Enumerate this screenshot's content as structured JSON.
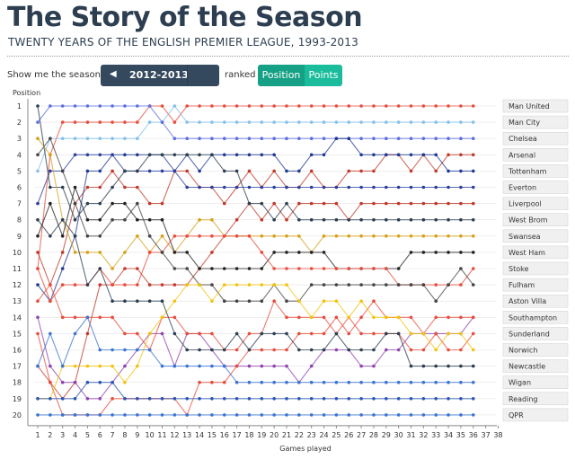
{
  "header": {
    "title": "The Story of the Season",
    "subtitle": "TWENTY YEARS OF THE ENGLISH PREMIER LEAGUE, 1993-2013"
  },
  "controls": {
    "season_label": "Show me the season of",
    "season_value": "2012-2013",
    "ranked_label": "ranked by",
    "toggle_position": "Position",
    "toggle_points": "Points",
    "active_toggle": "Position"
  },
  "chart_data": {
    "type": "line",
    "title": "",
    "ylabel": "Position",
    "xlabel": "Games played",
    "x_ticks": [
      1,
      2,
      3,
      4,
      5,
      6,
      7,
      8,
      9,
      10,
      11,
      12,
      13,
      14,
      15,
      16,
      17,
      18,
      19,
      20,
      21,
      22,
      23,
      24,
      25,
      26,
      27,
      28,
      29,
      30,
      31,
      32,
      33,
      34,
      35,
      36,
      37,
      38
    ],
    "y_ticks": [
      1,
      2,
      3,
      4,
      5,
      6,
      7,
      8,
      9,
      10,
      11,
      12,
      13,
      14,
      15,
      16,
      17,
      18,
      19,
      20
    ],
    "xlim": [
      1,
      38
    ],
    "ylim": [
      1,
      20
    ],
    "y_inverted": true,
    "grid": true,
    "legend_placement": "right",
    "series": [
      {
        "name": "Man United",
        "color": "#e74c3c",
        "values": [
          11,
          4,
          2,
          2,
          2,
          2,
          2,
          2,
          2,
          1,
          1,
          2,
          1,
          1,
          1,
          1,
          1,
          1,
          1,
          1,
          1,
          1,
          1,
          1,
          1,
          1,
          1,
          1,
          1,
          1,
          1,
          1,
          1,
          1,
          1,
          1
        ]
      },
      {
        "name": "Man City",
        "color": "#85c1e9",
        "values": [
          5,
          3,
          3,
          3,
          3,
          3,
          3,
          3,
          3,
          2,
          2,
          1,
          2,
          2,
          2,
          2,
          2,
          2,
          2,
          2,
          2,
          2,
          2,
          2,
          2,
          2,
          2,
          2,
          2,
          2,
          2,
          2,
          2,
          2,
          2,
          2
        ]
      },
      {
        "name": "Chelsea",
        "color": "#5b6ee1",
        "values": [
          2,
          1,
          1,
          1,
          1,
          1,
          1,
          1,
          1,
          1,
          2,
          3,
          3,
          3,
          3,
          3,
          3,
          3,
          3,
          3,
          3,
          3,
          3,
          3,
          3,
          3,
          3,
          3,
          3,
          3,
          3,
          3,
          3,
          3,
          3,
          3
        ]
      },
      {
        "name": "Arsenal",
        "color": "#c0392b",
        "values": [
          10,
          12,
          10,
          7,
          6,
          6,
          5,
          6,
          6,
          7,
          7,
          5,
          5,
          6,
          6,
          7,
          6,
          5,
          6,
          5,
          6,
          6,
          5,
          6,
          6,
          5,
          5,
          5,
          4,
          4,
          5,
          4,
          5,
          4,
          4,
          4
        ]
      },
      {
        "name": "Tottenham",
        "color": "#1f3a93",
        "values": [
          12,
          13,
          11,
          9,
          5,
          5,
          4,
          4,
          4,
          4,
          4,
          5,
          4,
          5,
          4,
          4,
          4,
          4,
          4,
          4,
          5,
          5,
          4,
          4,
          3,
          3,
          4,
          4,
          4,
          4,
          4,
          4,
          4,
          5,
          5,
          5
        ]
      },
      {
        "name": "Everton",
        "color": "#2c3e9e",
        "values": [
          7,
          5,
          5,
          4,
          4,
          4,
          4,
          5,
          5,
          5,
          5,
          5,
          6,
          6,
          6,
          6,
          6,
          6,
          6,
          6,
          6,
          6,
          6,
          6,
          6,
          6,
          6,
          6,
          6,
          6,
          6,
          6,
          6,
          6,
          6,
          6
        ]
      },
      {
        "name": "Liverpool",
        "color": "#c0392b",
        "values": [
          17,
          18,
          19,
          18,
          15,
          12,
          12,
          11,
          11,
          12,
          12,
          12,
          12,
          11,
          10,
          9,
          8,
          7,
          8,
          7,
          8,
          7,
          7,
          7,
          7,
          8,
          7,
          7,
          7,
          7,
          7,
          7,
          7,
          7,
          7,
          7
        ]
      },
      {
        "name": "West Brom",
        "color": "#2c3e50",
        "values": [
          1,
          6,
          6,
          8,
          7,
          7,
          6,
          5,
          5,
          4,
          4,
          4,
          4,
          4,
          4,
          5,
          5,
          7,
          7,
          8,
          7,
          8,
          8,
          8,
          8,
          8,
          8,
          8,
          8,
          8,
          8,
          8,
          8,
          8,
          8,
          8
        ]
      },
      {
        "name": "Swansea",
        "color": "#d4a017",
        "values": [
          3,
          4,
          8,
          10,
          10,
          10,
          11,
          10,
          9,
          10,
          9,
          10,
          9,
          8,
          8,
          9,
          9,
          9,
          9,
          9,
          9,
          9,
          10,
          9,
          9,
          9,
          9,
          9,
          9,
          9,
          9,
          9,
          9,
          9,
          9,
          9
        ]
      },
      {
        "name": "West Ham",
        "color": "#222222",
        "values": [
          9,
          7,
          9,
          6,
          8,
          8,
          7,
          7,
          8,
          8,
          8,
          10,
          10,
          11,
          11,
          11,
          11,
          11,
          11,
          10,
          10,
          10,
          10,
          10,
          11,
          11,
          11,
          11,
          11,
          11,
          10,
          10,
          10,
          10,
          10,
          10
        ]
      },
      {
        "name": "Stoke",
        "color": "#e74c3c",
        "values": [
          11,
          13,
          12,
          12,
          12,
          11,
          12,
          12,
          12,
          10,
          10,
          9,
          9,
          9,
          9,
          9,
          9,
          9,
          10,
          11,
          11,
          11,
          11,
          11,
          11,
          11,
          11,
          11,
          11,
          12,
          12,
          12,
          12,
          12,
          12,
          11
        ]
      },
      {
        "name": "Fulham",
        "color": "#444444",
        "values": [
          4,
          3,
          5,
          7,
          9,
          9,
          8,
          8,
          7,
          9,
          10,
          11,
          11,
          12,
          12,
          13,
          13,
          13,
          13,
          12,
          13,
          13,
          12,
          12,
          12,
          12,
          12,
          12,
          12,
          12,
          12,
          12,
          13,
          12,
          11,
          12
        ]
      },
      {
        "name": "Aston Villa",
        "color": "#8e44ad",
        "values": [
          14,
          17,
          18,
          18,
          19,
          19,
          18,
          17,
          16,
          15,
          15,
          17,
          15,
          15,
          16,
          17,
          17,
          17,
          17,
          17,
          17,
          18,
          17,
          16,
          16,
          16,
          17,
          17,
          16,
          16,
          15,
          15,
          15,
          15,
          15,
          14
        ]
      },
      {
        "name": "Southampton",
        "color": "#e74c3c",
        "values": [
          15,
          18,
          20,
          20,
          20,
          20,
          19,
          19,
          19,
          19,
          19,
          19,
          20,
          18,
          18,
          18,
          17,
          16,
          16,
          16,
          16,
          15,
          15,
          15,
          14,
          15,
          14,
          13,
          14,
          14,
          14,
          15,
          14,
          14,
          14,
          14
        ]
      },
      {
        "name": "Sunderland",
        "color": "#e74c3c",
        "values": [
          13,
          12,
          14,
          14,
          14,
          14,
          14,
          15,
          15,
          16,
          14,
          14,
          15,
          15,
          15,
          16,
          16,
          15,
          15,
          13,
          14,
          14,
          14,
          14,
          15,
          14,
          15,
          15,
          15,
          15,
          16,
          16,
          15,
          16,
          16,
          15
        ]
      },
      {
        "name": "Norwich",
        "color": "#f1c40f",
        "values": [
          19,
          19,
          17,
          17,
          17,
          17,
          17,
          18,
          17,
          15,
          14,
          13,
          12,
          12,
          13,
          12,
          12,
          12,
          12,
          12,
          12,
          13,
          14,
          13,
          13,
          14,
          13,
          14,
          14,
          14,
          15,
          15,
          16,
          15,
          15,
          16
        ]
      },
      {
        "name": "Newcastle",
        "color": "#2c3e50",
        "values": [
          8,
          9,
          8,
          9,
          12,
          11,
          13,
          13,
          13,
          13,
          13,
          15,
          16,
          16,
          16,
          16,
          15,
          16,
          15,
          15,
          15,
          16,
          16,
          16,
          15,
          16,
          16,
          16,
          15,
          15,
          17,
          17,
          17,
          17,
          17,
          17
        ]
      },
      {
        "name": "Wigan",
        "color": "#3b74d1",
        "values": [
          17,
          15,
          17,
          15,
          14,
          16,
          16,
          16,
          16,
          16,
          17,
          17,
          17,
          17,
          17,
          17,
          18,
          18,
          18,
          18,
          18,
          18,
          18,
          18,
          18,
          18,
          18,
          18,
          18,
          18,
          18,
          18,
          18,
          18,
          18,
          18
        ]
      },
      {
        "name": "Reading",
        "color": "#2c56b3",
        "values": [
          19,
          19,
          19,
          19,
          18,
          18,
          18,
          19,
          19,
          19,
          19,
          19,
          19,
          19,
          19,
          19,
          19,
          19,
          19,
          19,
          19,
          19,
          19,
          19,
          19,
          19,
          19,
          19,
          19,
          19,
          19,
          19,
          19,
          19,
          19,
          19
        ]
      },
      {
        "name": "QPR",
        "color": "#3b74d1",
        "values": [
          20,
          20,
          20,
          20,
          20,
          20,
          20,
          20,
          20,
          20,
          20,
          20,
          20,
          20,
          20,
          20,
          20,
          20,
          20,
          20,
          20,
          20,
          20,
          20,
          20,
          20,
          20,
          20,
          20,
          20,
          20,
          20,
          20,
          20,
          20,
          20
        ]
      }
    ]
  }
}
